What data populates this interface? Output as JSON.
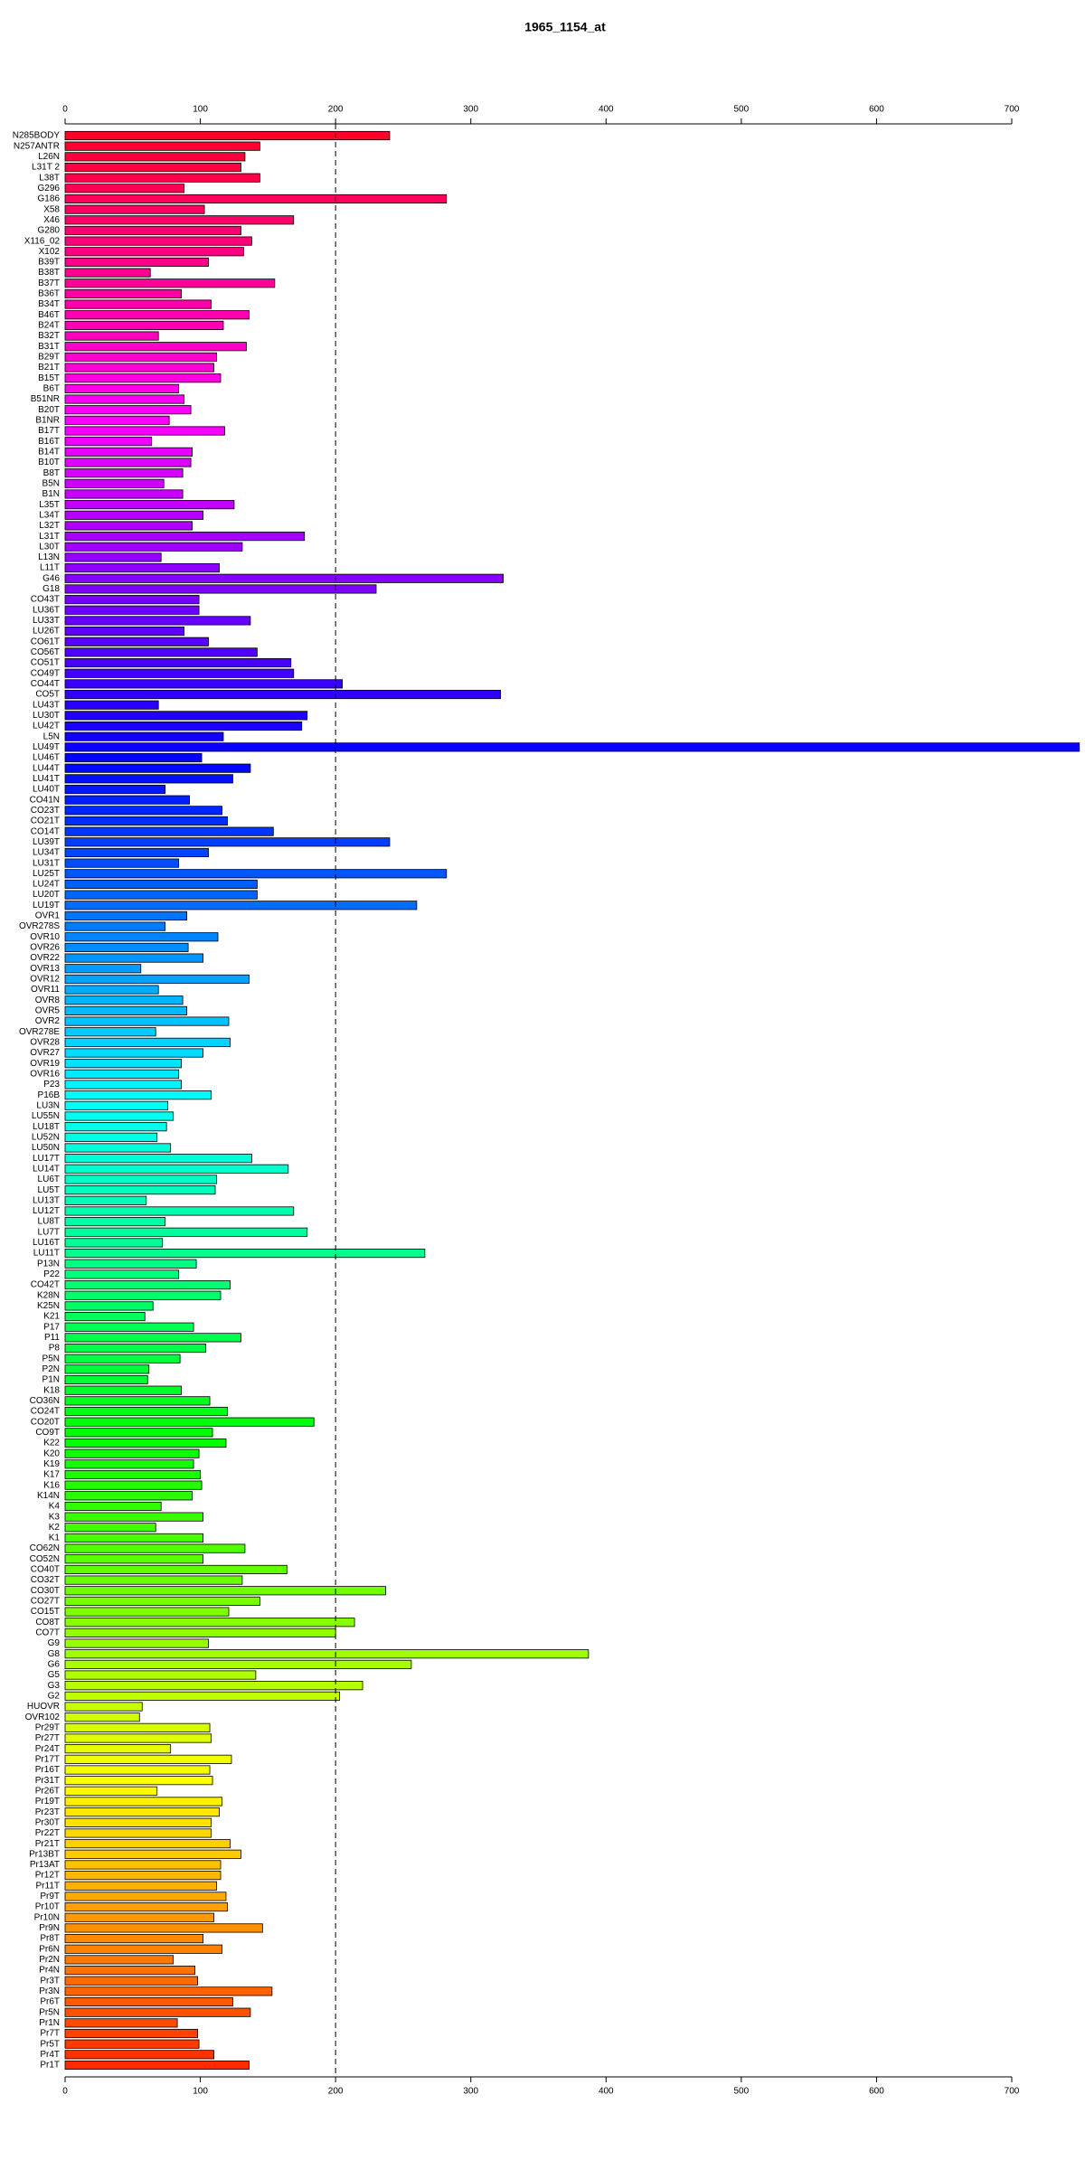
{
  "chart_data": {
    "type": "bar",
    "orientation": "horizontal",
    "title": "1965_1154_at",
    "categories": [
      "N285BODY",
      "N257ANTR",
      "L26N",
      "L31T 2",
      "L38T",
      "G296",
      "G186",
      "X58",
      "X46",
      "G280",
      "X116_02",
      "X102",
      "B39T",
      "B38T",
      "B37T",
      "B36T",
      "B34T",
      "B46T",
      "B24T",
      "B32T",
      "B31T",
      "B29T",
      "B21T",
      "B15T",
      "B6T",
      "B51NR",
      "B20T",
      "B1NR",
      "B17T",
      "B16T",
      "B14T",
      "B10T",
      "B8T",
      "B5N",
      "B1N",
      "L35T",
      "L34T",
      "L32T",
      "L31T",
      "L30T",
      "L13N",
      "L11T",
      "G46",
      "G18",
      "CO43T",
      "LU36T",
      "LU33T",
      "LU26T",
      "CO61T",
      "CO56T",
      "CO51T",
      "CO49T",
      "CO44T",
      "CO5T",
      "LU43T",
      "LU30T",
      "LU42T",
      "L5N",
      "LU49T",
      "LU46T",
      "LU44T",
      "LU41T",
      "LU40T",
      "CO41N",
      "CO23T",
      "CO21T",
      "CO14T",
      "LU39T",
      "LU34T",
      "LU31T",
      "LU25T",
      "LU24T",
      "LU20T",
      "LU19T",
      "OVR1",
      "OVR278S",
      "OVR10",
      "OVR26",
      "OVR22",
      "OVR13",
      "OVR12",
      "OVR11",
      "OVR8",
      "OVR5",
      "OVR2",
      "OVR278E",
      "OVR28",
      "OVR27",
      "OVR19",
      "OVR16",
      "P23",
      "P16B",
      "LU3N",
      "LU55N",
      "LU18T",
      "LU52N",
      "LU50N",
      "LU17T",
      "LU14T",
      "LU6T",
      "LU5T",
      "LU13T",
      "LU12T",
      "LU8T",
      "LU7T",
      "LU16T",
      "LU11T",
      "P13N",
      "P22",
      "CO42T",
      "K28N",
      "K25N",
      "K21",
      "P17",
      "P11",
      "P8",
      "P5N",
      "P2N",
      "P1N",
      "K18",
      "CO36N",
      "CO24T",
      "CO20T",
      "CO9T",
      "K22",
      "K20",
      "K19",
      "K17",
      "K16",
      "K14N",
      "K4",
      "K3",
      "K2",
      "K1",
      "CO62N",
      "CO52N",
      "CO40T",
      "CO32T",
      "CO30T",
      "CO27T",
      "CO15T",
      "CO8T",
      "CO7T",
      "G9",
      "G8",
      "G6",
      "G5",
      "G3",
      "G2",
      "HUOVR",
      "OVR102",
      "Pr29T",
      "Pr27T",
      "Pr24T",
      "Pr17T",
      "Pr16T",
      "Pr31T",
      "Pr26T",
      "Pr19T",
      "Pr23T",
      "Pr30T",
      "Pr22T",
      "Pr21T",
      "Pr13BT",
      "Pr13AT",
      "Pr12T",
      "Pr11T",
      "Pr9T",
      "Pr10T",
      "Pr10N",
      "Pr9N",
      "Pr8T",
      "Pr6N",
      "Pr2N",
      "Pr4N",
      "Pr3T",
      "Pr3N",
      "Pr6T",
      "Pr5N",
      "Pr1N",
      "Pr7T",
      "Pr5T",
      "Pr4T",
      "Pr1T"
    ],
    "values": [
      240,
      144,
      133,
      130,
      144,
      88,
      282,
      103,
      169,
      130,
      138,
      132,
      106,
      63,
      155,
      86,
      108,
      136,
      117,
      69,
      134,
      112,
      110,
      115,
      84,
      88,
      93,
      77,
      118,
      64,
      94,
      93,
      87,
      73,
      87,
      125,
      102,
      94,
      177,
      131,
      71,
      114,
      324,
      230,
      99,
      99,
      137,
      88,
      106,
      142,
      167,
      169,
      205,
      322,
      69,
      179,
      175,
      117,
      750,
      101,
      137,
      124,
      74,
      92,
      116,
      120,
      154,
      240,
      106,
      84,
      282,
      142,
      142,
      260,
      90,
      74,
      113,
      91,
      102,
      56,
      136,
      69,
      87,
      90,
      121,
      67,
      122,
      102,
      86,
      84,
      86,
      108,
      76,
      80,
      75,
      68,
      78,
      138,
      165,
      112,
      111,
      60,
      169,
      74,
      179,
      72,
      266,
      97,
      84,
      122,
      115,
      65,
      59,
      95,
      130,
      104,
      85,
      62,
      61,
      86,
      107,
      120,
      184,
      109,
      119,
      99,
      95,
      100,
      101,
      94,
      71,
      102,
      67,
      102,
      133,
      102,
      164,
      131,
      237,
      144,
      121,
      214,
      200,
      106,
      387,
      256,
      141,
      220,
      203,
      57,
      55,
      107,
      108,
      78,
      123,
      107,
      109,
      68,
      116,
      114,
      108,
      108,
      122,
      130,
      115,
      115,
      112,
      119,
      120,
      110,
      146,
      102,
      116,
      80,
      96,
      98,
      153,
      124,
      137,
      83,
      98,
      99,
      110,
      136
    ],
    "xlim": [
      0,
      700
    ],
    "xticks": [
      0,
      100,
      200,
      300,
      400,
      500,
      600,
      700
    ],
    "reference_line": 200
  }
}
